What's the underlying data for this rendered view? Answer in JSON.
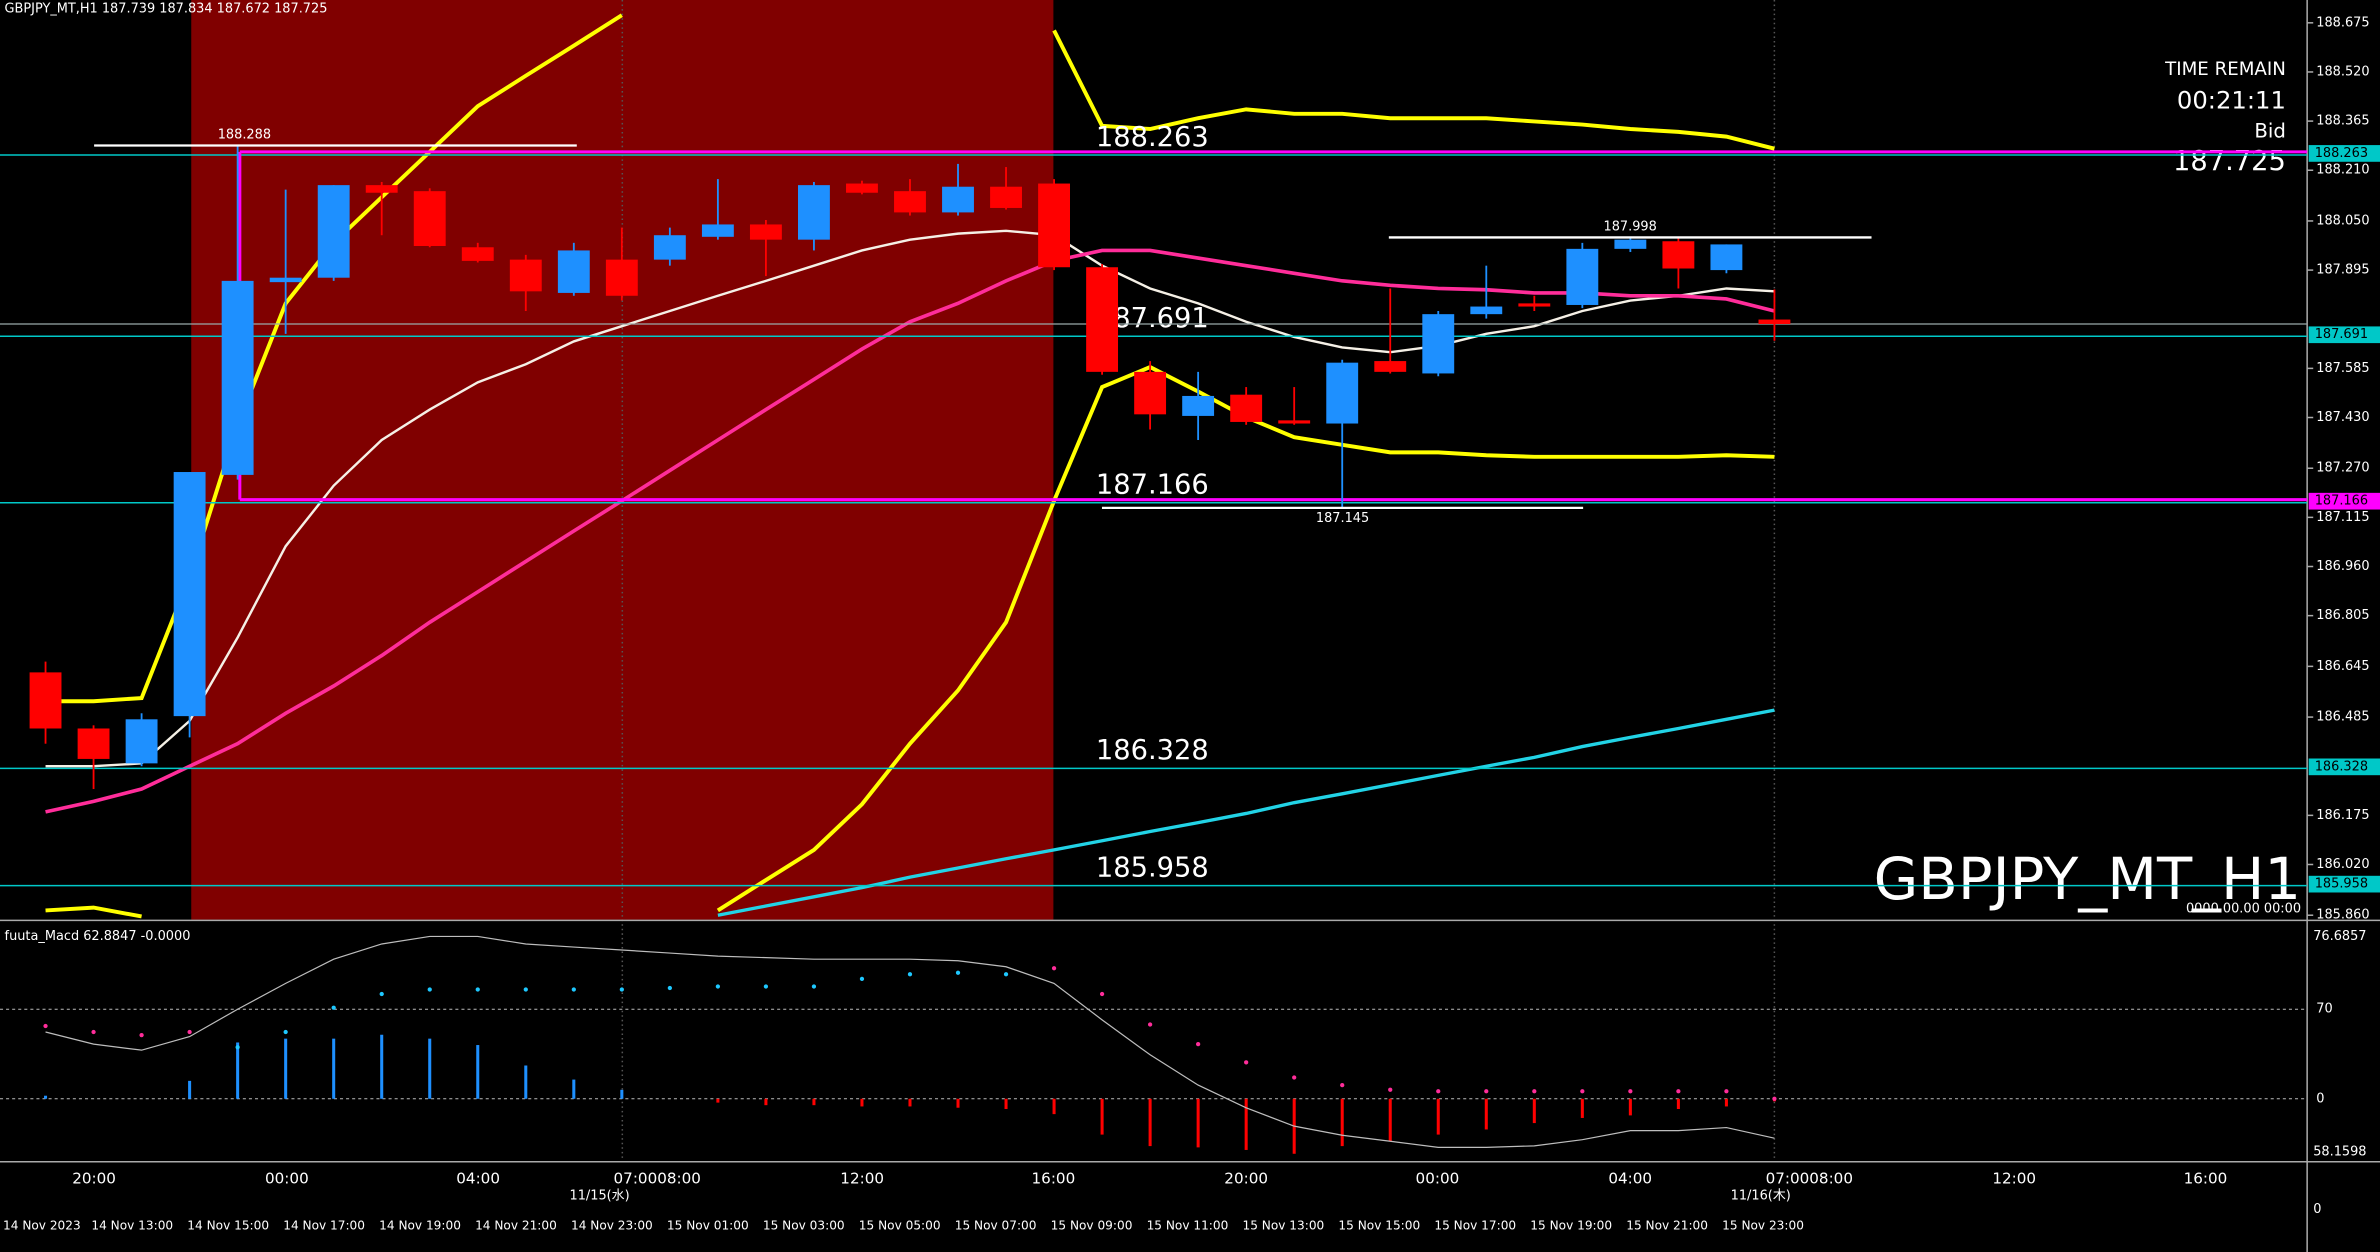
{
  "chart_data": {
    "type": "candlestick",
    "title": "GBPJPY_MT,H1  187.739 187.834 187.672 187.725",
    "watermark": "GBPJPY_MT_H1",
    "corner_label": "0000.00.00 00:00",
    "time_remain_label": "TIME REMAIN",
    "time_remain": "00:21:11",
    "bid_label": "Bid",
    "bid": 187.725,
    "up_color": "#1e90ff",
    "down_color": "#ff0000",
    "open": [
      186.626,
      186.449,
      186.339,
      186.488,
      187.249,
      187.857,
      187.871,
      188.163,
      188.144,
      187.967,
      187.928,
      187.823,
      187.928,
      187.928,
      188.0,
      188.039,
      187.991,
      188.168,
      188.144,
      188.077,
      188.158,
      188.168,
      187.904,
      187.574,
      187.435,
      187.502,
      187.421,
      187.411,
      187.608,
      187.569,
      187.756,
      187.79,
      187.785,
      187.962,
      187.986,
      187.895,
      187.739
    ],
    "high": [
      186.66,
      186.459,
      186.497,
      187.258,
      188.288,
      188.149,
      188.163,
      188.173,
      188.153,
      187.981,
      187.943,
      187.981,
      188.029,
      188.029,
      188.182,
      188.053,
      188.173,
      188.177,
      188.182,
      188.23,
      188.22,
      188.182,
      187.914,
      187.608,
      187.574,
      187.526,
      187.526,
      187.612,
      187.837,
      187.766,
      187.909,
      187.814,
      187.981,
      187.998,
      187.996,
      187.976,
      187.834
    ],
    "low": [
      186.401,
      186.258,
      186.33,
      186.421,
      187.234,
      187.694,
      187.861,
      188.005,
      187.967,
      187.919,
      187.766,
      187.814,
      187.799,
      187.909,
      187.991,
      187.876,
      187.957,
      188.134,
      188.067,
      188.067,
      188.086,
      187.895,
      187.565,
      187.392,
      187.359,
      187.407,
      187.407,
      187.145,
      187.569,
      187.56,
      187.742,
      187.766,
      187.775,
      187.952,
      187.837,
      187.885,
      187.672
    ],
    "close": [
      186.449,
      186.353,
      186.478,
      187.258,
      187.861,
      187.871,
      188.163,
      188.139,
      187.971,
      187.924,
      187.828,
      187.957,
      187.814,
      188.005,
      188.039,
      187.991,
      188.163,
      188.139,
      188.077,
      188.158,
      188.091,
      187.904,
      187.574,
      187.44,
      187.498,
      187.416,
      187.411,
      187.603,
      187.574,
      187.756,
      187.78,
      187.78,
      187.962,
      187.991,
      187.9,
      187.976,
      187.725
    ],
    "ylim": [
      185.846,
      188.747
    ],
    "yticks": [
      188.675,
      {
        "value": 188.52,
        "label": "188.520"
      },
      188.365,
      {
        "value": 188.21,
        "label": "188.210"
      },
      {
        "value": 188.05,
        "label": "188.050"
      },
      187.895,
      187.585,
      {
        "value": 187.43,
        "label": "187.430"
      },
      {
        "value": 187.27,
        "label": "187.270"
      },
      187.115,
      {
        "value": 186.96,
        "label": "186.960"
      },
      186.805,
      186.645,
      186.485,
      186.175,
      {
        "value": 186.02,
        "label": "186.020"
      },
      {
        "value": 185.86,
        "label": "185.860"
      }
    ],
    "overlays": [
      {
        "color": "#f5f0e6",
        "width": 1.6,
        "values": [
          186.33,
          186.33,
          186.339,
          186.473,
          186.736,
          187.024,
          187.215,
          187.359,
          187.455,
          187.541,
          187.598,
          187.67,
          187.718,
          187.766,
          187.814,
          187.861,
          187.909,
          187.957,
          187.991,
          188.01,
          188.019,
          188.005,
          187.909,
          187.837,
          187.79,
          187.732,
          187.684,
          187.651,
          187.636,
          187.656,
          187.694,
          187.718,
          187.766,
          187.799,
          187.814,
          187.837,
          187.828
        ]
      },
      {
        "color": "#ff2d9a",
        "width": 2.4,
        "values": [
          186.186,
          186.219,
          186.258,
          186.33,
          186.401,
          186.497,
          186.583,
          186.679,
          186.784,
          186.88,
          186.976,
          187.072,
          187.167,
          187.263,
          187.359,
          187.455,
          187.55,
          187.646,
          187.732,
          187.79,
          187.861,
          187.924,
          187.957,
          187.957,
          187.933,
          187.909,
          187.885,
          187.861,
          187.847,
          187.837,
          187.833,
          187.823,
          187.823,
          187.814,
          187.814,
          187.804,
          187.766
        ]
      },
      {
        "color": "#ffff00",
        "width": 2.6,
        "values": [
          186.535,
          186.535,
          186.545,
          186.928,
          187.407,
          187.79,
          187.981,
          188.125,
          188.268,
          188.412,
          188.508,
          188.603,
          188.699,
          null,
          null,
          null,
          null,
          null,
          null,
          null,
          null,
          188.651,
          188.35,
          188.34,
          188.374,
          188.402,
          188.388,
          188.388,
          188.374,
          188.374,
          188.374,
          188.364,
          188.354,
          188.34,
          188.331,
          188.316,
          188.278
        ]
      },
      {
        "color": "#ffff00",
        "width": 2.6,
        "values": [
          185.875,
          185.884,
          185.856,
          null,
          null,
          null,
          null,
          null,
          null,
          null,
          null,
          null,
          null,
          null,
          185.875,
          185.971,
          186.066,
          186.21,
          186.401,
          186.569,
          186.784,
          187.167,
          187.526,
          187.589,
          187.512,
          187.431,
          187.368,
          187.344,
          187.32,
          187.32,
          187.311,
          187.306,
          187.306,
          187.306,
          187.306,
          187.311,
          187.306
        ]
      },
      {
        "color": "#22d3e6",
        "width": 2.2,
        "values": [
          null,
          null,
          null,
          null,
          null,
          null,
          null,
          null,
          null,
          null,
          null,
          null,
          null,
          null,
          185.86,
          185.889,
          185.918,
          185.947,
          185.98,
          186.009,
          186.038,
          186.066,
          186.095,
          186.124,
          186.152,
          186.181,
          186.215,
          186.243,
          186.272,
          186.301,
          186.33,
          186.358,
          186.392,
          186.421,
          186.449,
          186.478,
          186.507
        ]
      }
    ],
    "levels": [
      {
        "value": 188.263,
        "color": "#00c8c8",
        "box_color": "#00c8c8",
        "line_color": "#ff00ff"
      },
      {
        "value": 187.691,
        "color": "#00c8c8",
        "box_color": "#00c8c8"
      },
      {
        "value": 187.166,
        "color": "#00c8c8",
        "box_color": "#ff00ff",
        "line_color": "#ff00ff"
      },
      {
        "value": 186.328,
        "color": "#00c8c8",
        "box_color": "#00c8c8"
      },
      {
        "value": 185.958,
        "color": "#00c8c8",
        "box_color": "#00c8c8"
      }
    ],
    "markers": [
      188.288,
      187.998,
      187.145
    ],
    "time_labels": [
      "20:00",
      "00:00",
      "04:00",
      "07:0008:00",
      "12:00",
      "16:00",
      "20:00",
      "00:00",
      "04:00",
      "07:0008:00",
      "12:00",
      "16:00"
    ],
    "day_labels": [
      "11/15(水)",
      "11/16(木)"
    ],
    "date_labels": [
      "14 Nov 2023",
      "14 Nov 13:00",
      "14 Nov 15:00",
      "14 Nov 17:00",
      "14 Nov 19:00",
      "14 Nov 21:00",
      "14 Nov 23:00",
      "15 Nov 01:00",
      "15 Nov 03:00",
      "15 Nov 05:00",
      "15 Nov 07:00",
      "15 Nov 09:00",
      "15 Nov 11:00",
      "15 Nov 13:00",
      "15 Nov 15:00",
      "15 Nov 17:00",
      "15 Nov 19:00",
      "15 Nov 21:00",
      "15 Nov 23:00"
    ],
    "axis_zero_label": "0",
    "macd": {
      "title": "fuuta_Macd 62.8847  -0.0000",
      "ylim": [
        -48.6,
        132.9
      ],
      "yticks": [
        70,
        0
      ],
      "scale_labels": [
        "76.6857",
        "58.1598"
      ],
      "up_color": "#1e90ff",
      "down_color": "#ff0000",
      "line_color": "#bdbdbd",
      "signal_up_color": "#1ec8ff",
      "signal_down_color": "#ff2d9a",
      "histogram": [
        2.4,
        0,
        0,
        14,
        44,
        47,
        47,
        50,
        47,
        42,
        26,
        15,
        7,
        0,
        -3,
        -5,
        -5,
        -6,
        -6,
        -7,
        -8,
        -12,
        -28,
        -37,
        -38,
        -40,
        -43,
        -37,
        -33,
        -28,
        -24,
        -19,
        -15,
        -13,
        -8,
        -6,
        -2
      ],
      "line": [
        52.2,
        42.7,
        38.0,
        48.6,
        70.0,
        90.2,
        109.1,
        121.0,
        126.9,
        126.9,
        121.0,
        118.6,
        116.3,
        113.9,
        111.5,
        110.3,
        109.1,
        109.1,
        109.1,
        107.9,
        103.2,
        90.2,
        61.7,
        34.4,
        10.7,
        -7.1,
        -21.4,
        -28.5,
        -33.2,
        -38.0,
        -38.0,
        -36.8,
        -32.0,
        -24.9,
        -24.9,
        -22.5,
        -30.8
      ],
      "signal": [
        56.9,
        52.2,
        49.8,
        52.2,
        40.3,
        52.2,
        71.2,
        81.9,
        85.4,
        85.4,
        85.4,
        85.4,
        85.4,
        86.6,
        87.8,
        87.8,
        87.8,
        93.7,
        97.3,
        98.5,
        97.3,
        102.0,
        81.9,
        58.1,
        42.7,
        28.5,
        16.6,
        10.7,
        7.1,
        5.9,
        5.9,
        5.9,
        5.9,
        5.9,
        5.9,
        5.9,
        0
      ]
    }
  }
}
